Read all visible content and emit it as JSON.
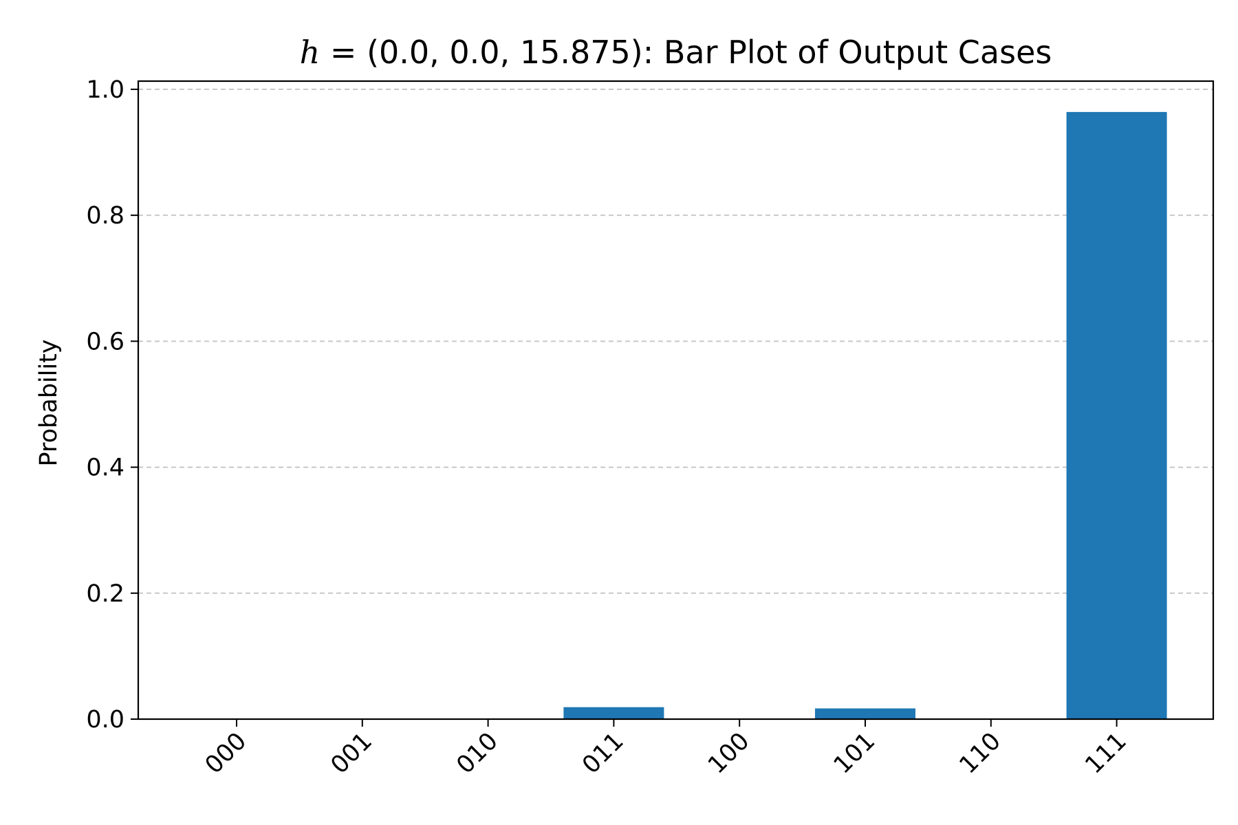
{
  "chart_data": {
    "type": "bar",
    "title": "h = (0.0, 0.0, 15.875): Bar Plot of Output Cases",
    "title_parts": {
      "symbol": "h",
      "rest": " = (0.0, 0.0, 15.875): Bar Plot of Output Cases"
    },
    "xlabel": "",
    "ylabel": "Probability",
    "categories": [
      "000",
      "001",
      "010",
      "011",
      "100",
      "101",
      "110",
      "111"
    ],
    "values": [
      0.0,
      0.0,
      0.0,
      0.019,
      0.0,
      0.017,
      0.0,
      0.964
    ],
    "ylim": [
      0.0,
      1.013
    ],
    "yticks": [
      0.0,
      0.2,
      0.4,
      0.6,
      0.8,
      1.0
    ],
    "ytick_labels": [
      "0.0",
      "0.2",
      "0.4",
      "0.6",
      "0.8",
      "1.0"
    ],
    "grid": "horizontal-dashed",
    "legend": "none",
    "bar_color": "#1f77b4",
    "grid_color": "#c8c8c8",
    "axis_color": "#000000"
  }
}
